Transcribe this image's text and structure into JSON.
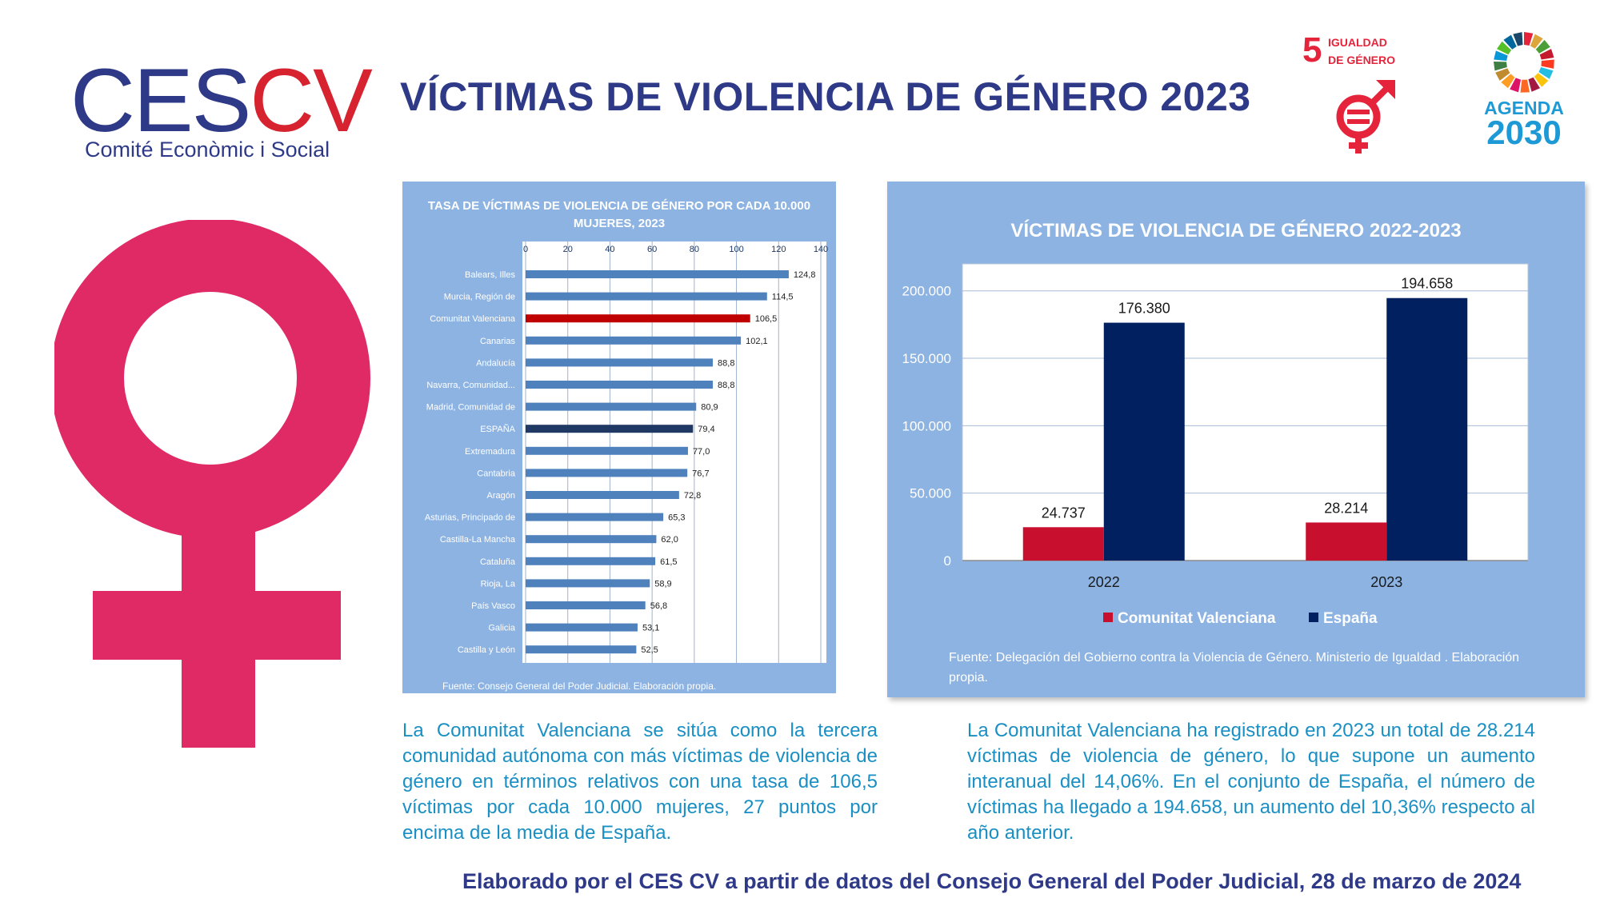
{
  "header": {
    "logo_text_part1": "CES",
    "logo_text_part2": "CV",
    "logo_subtitle": "Comité Econòmic i Social",
    "title": "VÍCTIMAS DE VIOLENCIA DE GÉNERO 2023",
    "sdg_number": "5",
    "sdg_label_line1": "IGUALDAD",
    "sdg_label_line2": "DE GÉNERO",
    "agenda_line1": "AGENDA",
    "agenda_line2": "2030"
  },
  "colors": {
    "brand_blue": "#2e3a87",
    "brand_red": "#d6232f",
    "venus_pink": "#e02a66",
    "panel_bg": "#8db3e2",
    "bar_default": "#4f81bd",
    "bar_highlight_cv": "#c00000",
    "bar_highlight_es": "#1f3864",
    "cv_series": "#c8102e",
    "es_series": "#002060",
    "text_cyan": "#1a8fc4"
  },
  "icons": [
    "venus-symbol-icon",
    "gender-equality-icon",
    "agenda-2030-wheel-icon"
  ],
  "chart_data": [
    {
      "type": "bar",
      "orientation": "horizontal",
      "title": "TASA DE VÍCTIMAS DE VIOLENCIA DE GÉNERO POR CADA 10.000 MUJERES, 2023",
      "xlim": [
        0,
        140
      ],
      "xticks": [
        "0",
        "20",
        "40",
        "60",
        "80",
        "100",
        "120",
        "140"
      ],
      "grid": true,
      "categories": [
        "Balears, Illes",
        "Murcia, Región de",
        "Comunitat Valenciana",
        "Canarias",
        "Andalucía",
        "Navarra, Comunidad...",
        "Madrid, Comunidad de",
        "ESPAÑA",
        "Extremadura",
        "Cantabria",
        "Aragón",
        "Asturias, Principado de",
        "Castilla-La Mancha",
        "Cataluña",
        "Rioja, La",
        "País Vasco",
        "Galicia",
        "Castilla y León"
      ],
      "values": [
        124.8,
        114.5,
        106.5,
        102.1,
        88.8,
        88.8,
        80.9,
        79.4,
        77.0,
        76.7,
        72.8,
        65.3,
        62.0,
        61.5,
        58.9,
        56.8,
        53.1,
        52.5
      ],
      "value_labels": [
        "124,8",
        "114,5",
        "106,5",
        "102,1",
        "88,8",
        "88,8",
        "80,9",
        "79,4",
        "77,0",
        "76,7",
        "72,8",
        "65,3",
        "62,0",
        "61,5",
        "58,9",
        "56,8",
        "53,1",
        "52,5"
      ],
      "highlight": {
        "Comunitat Valenciana": "#c00000",
        "ESPAÑA": "#1f3864"
      },
      "source": "Fuente:  Consejo General del Poder Judicial. Elaboración propia."
    },
    {
      "type": "bar",
      "title": "VÍCTIMAS DE VIOLENCIA DE GÉNERO 2022-2023",
      "categories": [
        "2022",
        "2023"
      ],
      "series": [
        {
          "name": "Comunitat Valenciana",
          "values": [
            24737,
            28214
          ],
          "labels": [
            "24.737",
            "28.214"
          ],
          "color": "#c8102e"
        },
        {
          "name": "España",
          "values": [
            176380,
            194658
          ],
          "labels": [
            "176.380",
            "194.658"
          ],
          "color": "#002060"
        }
      ],
      "ylim": [
        0,
        220000
      ],
      "yticks": [
        "0",
        "50.000",
        "100.000",
        "150.000",
        "200.000"
      ],
      "grid": true,
      "legend": "bottom",
      "source": "Fuente: Delegación del Gobierno contra la Violencia de Género. Ministerio de Igualdad . Elaboración propia."
    }
  ],
  "text": {
    "left_paragraph": "La Comunitat Valenciana se sitúa como la tercera comunidad autónoma con más víctimas de violencia de género en términos relativos con una tasa de 106,5 víctimas por cada 10.000 mujeres, 27 puntos por encima de la media de España.",
    "right_paragraph": "La Comunitat Valenciana ha registrado en 2023 un total de 28.214 víctimas de violencia de género, lo que supone un aumento interanual del 14,06%. En el conjunto de España, el número de víctimas ha llegado a 194.658, un aumento del 10,36% respecto al año anterior.",
    "footer": "Elaborado por el CES CV a partir de datos del Consejo General del Poder Judicial, 28 de marzo de 2024"
  }
}
